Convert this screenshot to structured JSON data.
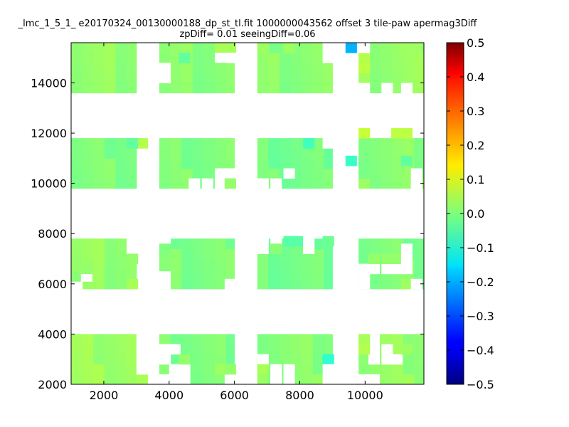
{
  "chart_data": {
    "type": "heatmap",
    "title": "_lmc_1_5_1_ e20170324_00130000188_dp_st_tl.fit 1000000043562 offset 3 tile-paw apermag3Diff",
    "subtitle": "zpDiff= 0.01 seeingDiff=0.06",
    "xlabel": "",
    "ylabel": "",
    "xlim": [
      1000,
      11800
    ],
    "ylim": [
      2000,
      15600
    ],
    "xticks": [
      2000,
      4000,
      6000,
      8000,
      10000
    ],
    "yticks": [
      2000,
      4000,
      6000,
      8000,
      10000,
      12000,
      14000
    ],
    "colorbar": {
      "colormap": "jet",
      "range": [
        -0.5,
        0.5
      ],
      "ticks": [
        "0.5",
        "0.4",
        "0.3",
        "0.2",
        "0.1",
        "0.0",
        "−0.1",
        "−0.2",
        "−0.3",
        "−0.4",
        "−0.5"
      ]
    },
    "grid": false,
    "cell_size": [
      340,
      400
    ],
    "fill_blocks": [
      {
        "x": [
          1000,
          3000
        ],
        "y": [
          2000,
          4000
        ],
        "value": 0.03
      },
      {
        "x": [
          3700,
          6000
        ],
        "y": [
          2000,
          4000
        ],
        "value": 0.0
      },
      {
        "x": [
          6700,
          9000
        ],
        "y": [
          2000,
          4000
        ],
        "value": 0.01
      },
      {
        "x": [
          9800,
          11800
        ],
        "y": [
          2000,
          4000
        ],
        "value": 0.02
      },
      {
        "x": [
          1000,
          3000
        ],
        "y": [
          5800,
          7800
        ],
        "value": 0.02
      },
      {
        "x": [
          3700,
          6000
        ],
        "y": [
          5800,
          7800
        ],
        "value": 0.0
      },
      {
        "x": [
          6700,
          9000
        ],
        "y": [
          5800,
          7800
        ],
        "value": -0.01
      },
      {
        "x": [
          9800,
          11800
        ],
        "y": [
          5800,
          7800
        ],
        "value": 0.0
      },
      {
        "x": [
          1000,
          3000
        ],
        "y": [
          9800,
          11800
        ],
        "value": 0.0
      },
      {
        "x": [
          3700,
          6000
        ],
        "y": [
          9800,
          11800
        ],
        "value": 0.0
      },
      {
        "x": [
          6700,
          9000
        ],
        "y": [
          9800,
          11800
        ],
        "value": -0.01
      },
      {
        "x": [
          9800,
          11800
        ],
        "y": [
          9800,
          11800
        ],
        "value": 0.01
      },
      {
        "x": [
          1000,
          3000
        ],
        "y": [
          13600,
          15600
        ],
        "value": 0.02
      },
      {
        "x": [
          3700,
          6000
        ],
        "y": [
          13600,
          15600
        ],
        "value": 0.01
      },
      {
        "x": [
          6700,
          9000
        ],
        "y": [
          13600,
          15600
        ],
        "value": 0.01
      },
      {
        "x": [
          9800,
          11800
        ],
        "y": [
          13600,
          15600
        ],
        "value": 0.02
      }
    ],
    "cells": [
      {
        "x": 3000,
        "y": 2000,
        "value": 0.04
      },
      {
        "x": 3000,
        "y": 2400,
        "value": null
      },
      {
        "x": 3700,
        "y": 2400,
        "value": 0.01
      },
      {
        "x": 4000,
        "y": 2400,
        "value": null
      },
      {
        "x": 4300,
        "y": 2400,
        "value": null
      },
      {
        "x": 3700,
        "y": 2000,
        "value": null
      },
      {
        "x": 4000,
        "y": 2000,
        "value": null
      },
      {
        "x": 4300,
        "y": 2000,
        "value": null
      },
      {
        "x": 3700,
        "y": 2800,
        "value": null
      },
      {
        "x": 3700,
        "y": 3200,
        "value": null
      },
      {
        "x": 4000,
        "y": 3200,
        "value": null
      },
      {
        "x": 4300,
        "y": 2800,
        "value": 0.02
      },
      {
        "x": 5700,
        "y": 2000,
        "value": null
      },
      {
        "x": 5400,
        "y": 2400,
        "value": 0.03
      },
      {
        "x": 5700,
        "y": 2400,
        "value": 0.02
      },
      {
        "x": 6700,
        "y": 2800,
        "value": null
      },
      {
        "x": 7100,
        "y": 2000,
        "value": null
      },
      {
        "x": 7100,
        "y": 2400,
        "value": null
      },
      {
        "x": 7500,
        "y": 2400,
        "value": null
      },
      {
        "x": 7500,
        "y": 2000,
        "value": null
      },
      {
        "x": 6700,
        "y": 2400,
        "value": 0.04
      },
      {
        "x": 7100,
        "y": 2000,
        "value": null
      },
      {
        "x": 8700,
        "y": 2000,
        "value": null
      },
      {
        "x": 8700,
        "y": 2800,
        "value": -0.08
      },
      {
        "x": 8700,
        "y": 2400,
        "value": null
      },
      {
        "x": 9800,
        "y": 2000,
        "value": null
      },
      {
        "x": 10100,
        "y": 2000,
        "value": null
      },
      {
        "x": 10100,
        "y": 2800,
        "value": null
      },
      {
        "x": 10100,
        "y": 3200,
        "value": null
      },
      {
        "x": 10100,
        "y": 3600,
        "value": null
      },
      {
        "x": 9800,
        "y": 3200,
        "value": 0.05
      },
      {
        "x": 9800,
        "y": 3600,
        "value": 0.04
      },
      {
        "x": 10500,
        "y": 2800,
        "value": null
      },
      {
        "x": 10500,
        "y": 3200,
        "value": null
      },
      {
        "x": 10800,
        "y": 2800,
        "value": null
      },
      {
        "x": 11100,
        "y": 3200,
        "value": 0.03
      },
      {
        "x": 3000,
        "y": 3600,
        "value": null
      },
      {
        "x": 3000,
        "y": 3200,
        "value": null
      },
      {
        "x": 3000,
        "y": 2800,
        "value": null
      },
      {
        "x": 1000,
        "y": 5800,
        "value": null
      },
      {
        "x": 1000,
        "y": 6100,
        "value": 0.01
      },
      {
        "x": 1300,
        "y": 6100,
        "value": null
      },
      {
        "x": 1300,
        "y": 6400,
        "value": 0.02
      },
      {
        "x": 2700,
        "y": 5800,
        "value": 0.04
      },
      {
        "x": 2700,
        "y": 7500,
        "value": null
      },
      {
        "x": 2700,
        "y": 7200,
        "value": null
      },
      {
        "x": 2700,
        "y": 6800,
        "value": 0.02
      },
      {
        "x": 3700,
        "y": 7500,
        "value": null
      },
      {
        "x": 3700,
        "y": 7200,
        "value": 0.0
      },
      {
        "x": 3700,
        "y": 5800,
        "value": null
      },
      {
        "x": 3700,
        "y": 6100,
        "value": null
      },
      {
        "x": 5700,
        "y": 5800,
        "value": null
      },
      {
        "x": 6700,
        "y": 7500,
        "value": null
      },
      {
        "x": 6700,
        "y": 7200,
        "value": null
      },
      {
        "x": 7100,
        "y": 7500,
        "value": null
      },
      {
        "x": 7100,
        "y": 7200,
        "value": 0.01
      },
      {
        "x": 7500,
        "y": 7500,
        "value": -0.04
      },
      {
        "x": 7800,
        "y": 7500,
        "value": -0.04
      },
      {
        "x": 8100,
        "y": 7500,
        "value": null
      },
      {
        "x": 8100,
        "y": 7200,
        "value": null
      },
      {
        "x": 8700,
        "y": 7500,
        "value": -0.02
      },
      {
        "x": 9800,
        "y": 5800,
        "value": null
      },
      {
        "x": 9800,
        "y": 6100,
        "value": null
      },
      {
        "x": 9800,
        "y": 6400,
        "value": null
      },
      {
        "x": 10100,
        "y": 6400,
        "value": null
      },
      {
        "x": 10500,
        "y": 6400,
        "value": null
      },
      {
        "x": 10800,
        "y": 6400,
        "value": null
      },
      {
        "x": 11100,
        "y": 6400,
        "value": null
      },
      {
        "x": 10100,
        "y": 6800,
        "value": 0.02
      },
      {
        "x": 10500,
        "y": 6800,
        "value": 0.02
      },
      {
        "x": 10800,
        "y": 6800,
        "value": 0.02
      },
      {
        "x": 11100,
        "y": 6800,
        "value": null
      },
      {
        "x": 11100,
        "y": 7200,
        "value": null
      },
      {
        "x": 11100,
        "y": 5800,
        "value": 0.03
      },
      {
        "x": 11400,
        "y": 5800,
        "value": null
      },
      {
        "x": 3000,
        "y": 11400,
        "value": 0.05
      },
      {
        "x": 2700,
        "y": 11400,
        "value": -0.03
      },
      {
        "x": 5400,
        "y": 10200,
        "value": null
      },
      {
        "x": 5700,
        "y": 10200,
        "value": null
      },
      {
        "x": 5700,
        "y": 9800,
        "value": null
      },
      {
        "x": 4600,
        "y": 9800,
        "value": null
      },
      {
        "x": 5000,
        "y": 9800,
        "value": null
      },
      {
        "x": 5400,
        "y": 9800,
        "value": null
      },
      {
        "x": 5700,
        "y": 9800,
        "value": 0.02
      },
      {
        "x": 6700,
        "y": 9800,
        "value": null
      },
      {
        "x": 7100,
        "y": 9800,
        "value": null
      },
      {
        "x": 7500,
        "y": 10200,
        "value": null
      },
      {
        "x": 8100,
        "y": 11400,
        "value": -0.06
      },
      {
        "x": 8700,
        "y": 11400,
        "value": null
      },
      {
        "x": 9400,
        "y": 10700,
        "value": -0.07
      },
      {
        "x": 9800,
        "y": 11800,
        "value": 0.07
      },
      {
        "x": 10800,
        "y": 11800,
        "value": 0.06
      },
      {
        "x": 11100,
        "y": 11800,
        "value": 0.06
      },
      {
        "x": 11400,
        "y": 10200,
        "value": null
      },
      {
        "x": 11400,
        "y": 9800,
        "value": null
      },
      {
        "x": 11100,
        "y": 10700,
        "value": -0.03
      },
      {
        "x": 5400,
        "y": 15200,
        "value": 0.04
      },
      {
        "x": 5700,
        "y": 15200,
        "value": 0.04
      },
      {
        "x": 5400,
        "y": 14800,
        "value": null
      },
      {
        "x": 5700,
        "y": 14800,
        "value": null
      },
      {
        "x": 3700,
        "y": 14400,
        "value": null
      },
      {
        "x": 3700,
        "y": 14000,
        "value": null
      },
      {
        "x": 5400,
        "y": 14400,
        "value": 0.01
      },
      {
        "x": 4300,
        "y": 14800,
        "value": -0.03
      },
      {
        "x": 8700,
        "y": 14800,
        "value": null
      },
      {
        "x": 8700,
        "y": 15200,
        "value": null
      },
      {
        "x": 7500,
        "y": 15200,
        "value": 0.03
      },
      {
        "x": 6700,
        "y": 15200,
        "value": 0.03
      },
      {
        "x": 9400,
        "y": 15200,
        "value": -0.2
      },
      {
        "x": 9800,
        "y": 14400,
        "value": 0.06
      },
      {
        "x": 9800,
        "y": 14800,
        "value": 0.05
      },
      {
        "x": 9800,
        "y": 15200,
        "value": null
      },
      {
        "x": 9800,
        "y": 13600,
        "value": null
      },
      {
        "x": 10500,
        "y": 13600,
        "value": null
      },
      {
        "x": 11100,
        "y": 13600,
        "value": null
      },
      {
        "x": 11400,
        "y": 15200,
        "value": 0.03
      },
      {
        "x": 11100,
        "y": 15200,
        "value": 0.03
      }
    ]
  }
}
